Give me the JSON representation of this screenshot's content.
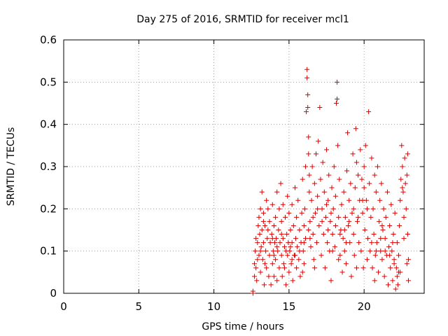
{
  "chart_data": {
    "type": "scatter",
    "title": "Day 275 of 2016, SRMTID for receiver mcl1",
    "xlabel": "GPS time / hours",
    "ylabel": "SRMTID / TECUs",
    "xlim": [
      0,
      24
    ],
    "ylim": [
      0,
      0.6
    ],
    "xticks": [
      0,
      5,
      10,
      15,
      20
    ],
    "yticks": [
      0,
      0.1,
      0.2,
      0.3,
      0.4,
      0.5,
      0.6
    ],
    "xtick_labels": [
      "0",
      "5",
      "10",
      "15",
      "20"
    ],
    "ytick_labels": [
      "0",
      "0.1",
      "0.2",
      "0.3",
      "0.4",
      "0.5",
      "0.6"
    ],
    "grid": true,
    "marker": "+",
    "marker_color": "#dd0000",
    "series": [
      {
        "name": "mcl1",
        "points": [
          [
            12.6,
            0.0
          ],
          [
            12.6,
            0.005
          ],
          [
            12.7,
            0.04
          ],
          [
            12.7,
            0.07
          ],
          [
            12.75,
            0.1
          ],
          [
            12.8,
            0.13
          ],
          [
            12.8,
            0.06
          ],
          [
            12.85,
            0.03
          ],
          [
            12.9,
            0.12
          ],
          [
            12.95,
            0.16
          ],
          [
            13.0,
            0.09
          ],
          [
            13.0,
            0.18
          ],
          [
            13.05,
            0.14
          ],
          [
            13.1,
            0.2
          ],
          [
            13.1,
            0.05
          ],
          [
            13.15,
            0.11
          ],
          [
            13.2,
            0.24
          ],
          [
            13.2,
            0.15
          ],
          [
            13.25,
            0.08
          ],
          [
            13.3,
            0.19
          ],
          [
            13.3,
            0.12
          ],
          [
            13.35,
            0.02
          ],
          [
            13.4,
            0.16
          ],
          [
            13.45,
            0.1
          ],
          [
            13.5,
            0.22
          ],
          [
            13.5,
            0.06
          ],
          [
            13.55,
            0.13
          ],
          [
            13.6,
            0.2
          ],
          [
            13.65,
            0.04
          ],
          [
            13.7,
            0.09
          ],
          [
            13.7,
            0.17
          ],
          [
            13.75,
            0.12
          ],
          [
            13.8,
            0.02
          ],
          [
            13.85,
            0.14
          ],
          [
            13.9,
            0.07
          ],
          [
            13.9,
            0.21
          ],
          [
            13.95,
            0.1
          ],
          [
            14.0,
            0.16
          ],
          [
            14.0,
            0.04
          ],
          [
            14.05,
            0.12
          ],
          [
            14.1,
            0.18
          ],
          [
            14.1,
            0.08
          ],
          [
            14.15,
            0.13
          ],
          [
            14.2,
            0.24
          ],
          [
            14.2,
            0.03
          ],
          [
            14.25,
            0.1
          ],
          [
            14.3,
            0.15
          ],
          [
            14.35,
            0.2
          ],
          [
            14.35,
            0.06
          ],
          [
            14.4,
            0.12
          ],
          [
            14.45,
            0.26
          ],
          [
            14.5,
            0.09
          ],
          [
            14.5,
            0.17
          ],
          [
            14.55,
            0.04
          ],
          [
            14.6,
            0.13
          ],
          [
            14.6,
            0.21
          ],
          [
            14.65,
            0.07
          ],
          [
            14.7,
            0.11
          ],
          [
            14.75,
            0.18
          ],
          [
            14.8,
            0.02
          ],
          [
            14.85,
            0.14
          ],
          [
            14.9,
            0.09
          ],
          [
            14.9,
            0.23
          ],
          [
            14.95,
            0.12
          ],
          [
            15.0,
            0.05
          ],
          [
            15.0,
            0.19
          ],
          [
            15.05,
            0.1
          ],
          [
            15.1,
            0.15
          ],
          [
            15.15,
            0.07
          ],
          [
            15.2,
            0.21
          ],
          [
            15.2,
            0.12
          ],
          [
            15.25,
            0.03
          ],
          [
            15.3,
            0.16
          ],
          [
            15.35,
            0.09
          ],
          [
            15.4,
            0.25
          ],
          [
            15.45,
            0.13
          ],
          [
            15.5,
            0.06
          ],
          [
            15.5,
            0.18
          ],
          [
            15.55,
            0.11
          ],
          [
            15.6,
            0.22
          ],
          [
            15.65,
            0.08
          ],
          [
            15.7,
            0.15
          ],
          [
            15.75,
            0.04
          ],
          [
            15.8,
            0.12
          ],
          [
            15.85,
            0.19
          ],
          [
            15.9,
            0.27
          ],
          [
            15.95,
            0.1
          ],
          [
            16.0,
            0.16
          ],
          [
            16.0,
            0.07
          ],
          [
            16.05,
            0.2
          ],
          [
            16.1,
            0.3
          ],
          [
            16.1,
            0.13
          ],
          [
            16.15,
            0.43
          ],
          [
            16.2,
            0.53
          ],
          [
            16.2,
            0.51
          ],
          [
            16.25,
            0.47
          ],
          [
            16.25,
            0.44
          ],
          [
            16.3,
            0.37
          ],
          [
            16.3,
            0.33
          ],
          [
            16.35,
            0.28
          ],
          [
            16.35,
            0.24
          ],
          [
            16.4,
            0.17
          ],
          [
            16.45,
            0.11
          ],
          [
            16.5,
            0.22
          ],
          [
            16.55,
            0.3
          ],
          [
            16.6,
            0.14
          ],
          [
            16.65,
            0.08
          ],
          [
            16.7,
            0.26
          ],
          [
            16.75,
            0.19
          ],
          [
            16.8,
            0.33
          ],
          [
            16.85,
            0.12
          ],
          [
            16.9,
            0.23
          ],
          [
            16.95,
            0.36
          ],
          [
            17.0,
            0.16
          ],
          [
            17.05,
            0.44
          ],
          [
            17.1,
            0.27
          ],
          [
            17.15,
            0.09
          ],
          [
            17.2,
            0.2
          ],
          [
            17.25,
            0.31
          ],
          [
            17.3,
            0.14
          ],
          [
            17.35,
            0.24
          ],
          [
            17.4,
            0.06
          ],
          [
            17.45,
            0.18
          ],
          [
            17.5,
            0.34
          ],
          [
            17.55,
            0.12
          ],
          [
            17.6,
            0.22
          ],
          [
            17.65,
            0.28
          ],
          [
            17.7,
            0.1
          ],
          [
            17.75,
            0.17
          ],
          [
            17.8,
            0.03
          ],
          [
            17.85,
            0.25
          ],
          [
            17.9,
            0.14
          ],
          [
            17.95,
            0.2
          ],
          [
            18.0,
            0.3
          ],
          [
            18.05,
            0.11
          ],
          [
            18.1,
            0.23
          ],
          [
            18.15,
            0.45
          ],
          [
            18.2,
            0.5
          ],
          [
            18.2,
            0.46
          ],
          [
            18.25,
            0.35
          ],
          [
            18.3,
            0.18
          ],
          [
            18.35,
            0.27
          ],
          [
            18.4,
            0.09
          ],
          [
            18.45,
            0.15
          ],
          [
            18.5,
            0.21
          ],
          [
            18.55,
            0.05
          ],
          [
            18.6,
            0.13
          ],
          [
            18.65,
            0.24
          ],
          [
            18.7,
            0.1
          ],
          [
            18.75,
            0.18
          ],
          [
            18.8,
            0.07
          ],
          [
            18.85,
            0.29
          ],
          [
            18.9,
            0.38
          ],
          [
            18.95,
            0.16
          ],
          [
            19.0,
            0.22
          ],
          [
            19.05,
            0.12
          ],
          [
            19.1,
            0.26
          ],
          [
            19.15,
            0.04
          ],
          [
            19.2,
            0.19
          ],
          [
            19.25,
            0.33
          ],
          [
            19.3,
            0.14
          ],
          [
            19.35,
            0.09
          ],
          [
            19.4,
            0.25
          ],
          [
            19.45,
            0.39
          ],
          [
            19.5,
            0.31
          ],
          [
            19.55,
            0.17
          ],
          [
            19.6,
            0.28
          ],
          [
            19.65,
            0.12
          ],
          [
            19.7,
            0.22
          ],
          [
            19.75,
            0.34
          ],
          [
            19.8,
            0.1
          ],
          [
            19.85,
            0.27
          ],
          [
            19.9,
            0.19
          ],
          [
            19.95,
            0.06
          ],
          [
            20.0,
            0.3
          ],
          [
            20.05,
            0.15
          ],
          [
            20.1,
            0.35
          ],
          [
            20.15,
            0.22
          ],
          [
            20.2,
            0.08
          ],
          [
            20.25,
            0.13
          ],
          [
            20.3,
            0.43
          ],
          [
            20.35,
            0.26
          ],
          [
            20.4,
            0.1
          ],
          [
            20.45,
            0.18
          ],
          [
            20.5,
            0.32
          ],
          [
            20.55,
            0.06
          ],
          [
            20.6,
            0.2
          ],
          [
            20.65,
            0.14
          ],
          [
            20.7,
            0.28
          ],
          [
            20.75,
            0.09
          ],
          [
            20.8,
            0.24
          ],
          [
            20.85,
            0.12
          ],
          [
            20.9,
            0.3
          ],
          [
            20.95,
            0.05
          ],
          [
            21.0,
            0.17
          ],
          [
            21.05,
            0.22
          ],
          [
            21.1,
            0.1
          ],
          [
            21.15,
            0.26
          ],
          [
            21.2,
            0.08
          ],
          [
            21.25,
            0.15
          ],
          [
            21.3,
            0.2
          ],
          [
            21.35,
            0.04
          ],
          [
            21.4,
            0.13
          ],
          [
            21.45,
            0.18
          ],
          [
            21.5,
            0.09
          ],
          [
            21.55,
            0.24
          ],
          [
            21.6,
            0.02
          ],
          [
            21.65,
            0.11
          ],
          [
            21.7,
            0.16
          ],
          [
            21.75,
            0.06
          ],
          [
            21.8,
            0.21
          ],
          [
            21.85,
            0.1
          ],
          [
            21.9,
            0.03
          ],
          [
            21.95,
            0.14
          ],
          [
            22.0,
            0.08
          ],
          [
            22.05,
            0.19
          ],
          [
            22.1,
            0.01
          ],
          [
            22.15,
            0.06
          ],
          [
            22.2,
            0.12
          ],
          [
            22.25,
            0.02
          ],
          [
            22.3,
            0.09
          ],
          [
            22.35,
            0.16
          ],
          [
            22.4,
            0.22
          ],
          [
            22.45,
            0.27
          ],
          [
            22.5,
            0.35
          ],
          [
            22.55,
            0.3
          ],
          [
            22.6,
            0.24
          ],
          [
            22.65,
            0.18
          ],
          [
            22.7,
            0.32
          ],
          [
            22.75,
            0.26
          ],
          [
            22.8,
            0.2
          ],
          [
            22.85,
            0.07
          ],
          [
            22.9,
            0.14
          ],
          [
            22.95,
            0.03
          ],
          [
            22.9,
            0.33
          ],
          [
            22.55,
            0.25
          ],
          [
            22.65,
            0.13
          ],
          [
            22.85,
            0.28
          ],
          [
            22.4,
            0.05
          ],
          [
            22.95,
            0.08
          ],
          [
            13.1,
            0.1
          ],
          [
            13.4,
            0.07
          ],
          [
            13.6,
            0.15
          ],
          [
            13.9,
            0.13
          ],
          [
            14.2,
            0.11
          ],
          [
            14.5,
            0.14
          ],
          [
            14.8,
            0.1
          ],
          [
            15.1,
            0.11
          ],
          [
            15.4,
            0.09
          ],
          [
            15.7,
            0.1
          ],
          [
            16.0,
            0.12
          ],
          [
            16.3,
            0.15
          ],
          [
            16.6,
            0.18
          ],
          [
            16.9,
            0.2
          ],
          [
            17.2,
            0.17
          ],
          [
            17.5,
            0.21
          ],
          [
            17.8,
            0.19
          ],
          [
            18.1,
            0.16
          ],
          [
            18.4,
            0.14
          ],
          [
            18.7,
            0.15
          ],
          [
            19.0,
            0.17
          ],
          [
            19.3,
            0.2
          ],
          [
            19.6,
            0.18
          ],
          [
            19.9,
            0.22
          ],
          [
            20.2,
            0.2
          ],
          [
            20.5,
            0.12
          ],
          [
            20.8,
            0.1
          ],
          [
            21.1,
            0.13
          ],
          [
            21.4,
            0.1
          ],
          [
            21.7,
            0.09
          ],
          [
            22.0,
            0.07
          ],
          [
            22.3,
            0.05
          ],
          [
            14.0,
            0.09
          ],
          [
            15.2,
            0.08
          ],
          [
            16.4,
            0.13
          ],
          [
            17.6,
            0.15
          ],
          [
            18.8,
            0.12
          ],
          [
            20.0,
            0.25
          ],
          [
            21.2,
            0.16
          ],
          [
            22.2,
            0.04
          ],
          [
            13.3,
            0.17
          ],
          [
            14.7,
            0.06
          ],
          [
            16.7,
            0.06
          ],
          [
            18.3,
            0.08
          ],
          [
            19.5,
            0.06
          ],
          [
            20.7,
            0.03
          ],
          [
            21.9,
            0.12
          ],
          [
            12.9,
            0.08
          ],
          [
            15.9,
            0.05
          ],
          [
            17.9,
            0.1
          ]
        ]
      }
    ]
  }
}
